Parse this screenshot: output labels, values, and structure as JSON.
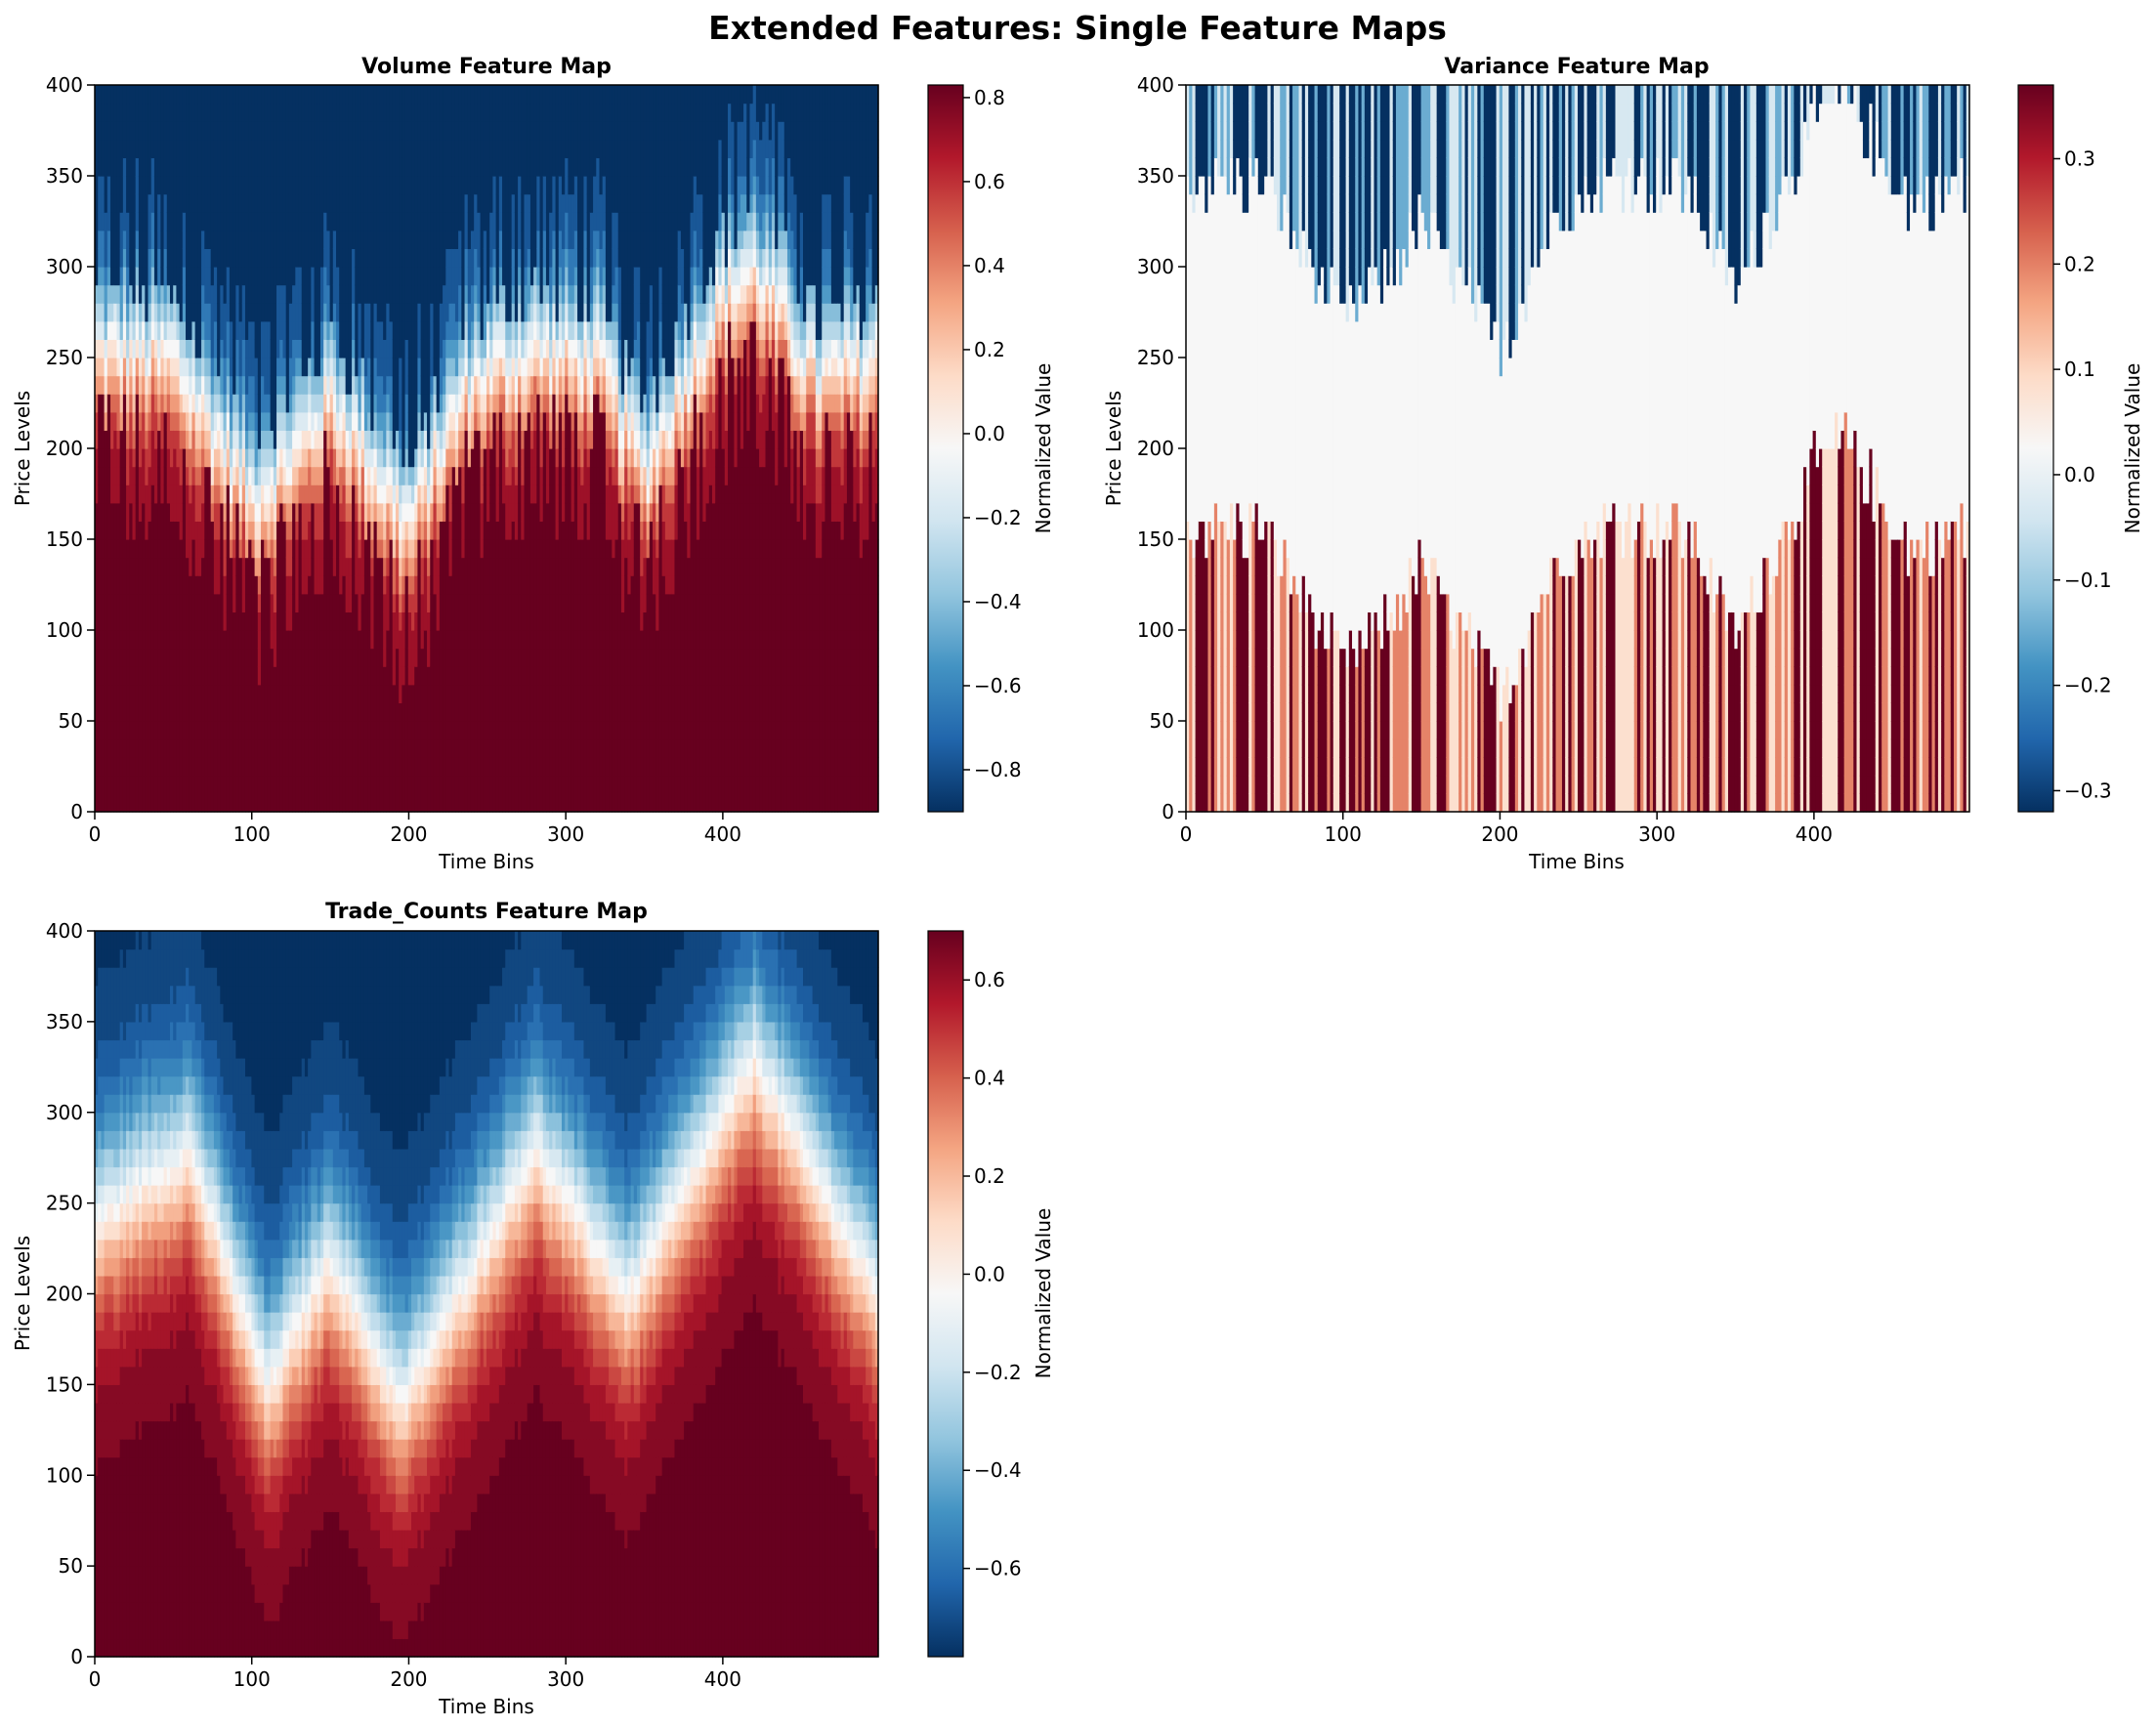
{
  "figure": {
    "title": "Extended Features: Single Feature Maps"
  },
  "chart_data": [
    {
      "type": "heatmap",
      "title": "Volume Feature Map",
      "xlabel": "Time Bins",
      "ylabel": "Price Levels",
      "colorbar_label": "Normalized Value",
      "colormap": "RdBu_r",
      "xlim": [
        0,
        499
      ],
      "ylim": [
        0,
        400
      ],
      "xticks": [
        0,
        100,
        200,
        300,
        400
      ],
      "yticks": [
        0,
        50,
        100,
        150,
        200,
        250,
        300,
        350,
        400
      ],
      "value_range": [
        -0.9,
        0.83
      ],
      "colorbar_ticks": [
        -0.8,
        -0.6,
        -0.4,
        -0.2,
        0.0,
        0.2,
        0.4,
        0.6,
        0.8
      ],
      "colorbar_tick_labels": [
        "−0.8",
        "−0.6",
        "−0.4",
        "−0.2",
        "0.0",
        "0.2",
        "0.4",
        "0.6",
        "0.8"
      ],
      "center_level_by_time": [
        [
          0,
          255
        ],
        [
          50,
          250
        ],
        [
          100,
          175
        ],
        [
          130,
          200
        ],
        [
          150,
          230
        ],
        [
          200,
          160
        ],
        [
          240,
          240
        ],
        [
          280,
          255
        ],
        [
          320,
          250
        ],
        [
          350,
          190
        ],
        [
          400,
          285
        ],
        [
          420,
          300
        ],
        [
          460,
          240
        ],
        [
          499,
          250
        ]
      ]
    },
    {
      "type": "heatmap",
      "title": "Variance Feature Map",
      "xlabel": "Time Bins",
      "ylabel": "Price Levels",
      "colorbar_label": "Normalized Value",
      "colormap": "RdBu_r",
      "xlim": [
        0,
        499
      ],
      "ylim": [
        0,
        400
      ],
      "xticks": [
        0,
        100,
        200,
        300,
        400
      ],
      "yticks": [
        0,
        50,
        100,
        150,
        200,
        250,
        300,
        350,
        400
      ],
      "value_range": [
        -0.32,
        0.37
      ],
      "colorbar_ticks": [
        -0.3,
        -0.2,
        -0.1,
        0.0,
        0.1,
        0.2,
        0.3
      ],
      "colorbar_tick_labels": [
        "−0.3",
        "−0.2",
        "−0.1",
        "0.0",
        "0.1",
        "0.2",
        "0.3"
      ],
      "center_level_by_time": [
        [
          0,
          255
        ],
        [
          50,
          250
        ],
        [
          100,
          175
        ],
        [
          130,
          200
        ],
        [
          150,
          230
        ],
        [
          200,
          160
        ],
        [
          240,
          240
        ],
        [
          280,
          255
        ],
        [
          320,
          250
        ],
        [
          350,
          190
        ],
        [
          400,
          285
        ],
        [
          420,
          300
        ],
        [
          460,
          240
        ],
        [
          499,
          250
        ]
      ]
    },
    {
      "type": "heatmap",
      "title": "Trade_Counts Feature Map",
      "xlabel": "Time Bins",
      "ylabel": "Price Levels",
      "colorbar_label": "Normalized Value",
      "colormap": "RdBu_r",
      "xlim": [
        0,
        499
      ],
      "ylim": [
        0,
        400
      ],
      "xticks": [
        0,
        100,
        200,
        300,
        400
      ],
      "yticks": [
        0,
        50,
        100,
        150,
        200,
        250,
        300,
        350,
        400
      ],
      "value_range": [
        -0.78,
        0.7
      ],
      "colorbar_ticks": [
        -0.6,
        -0.4,
        -0.2,
        0.0,
        0.2,
        0.4,
        0.6
      ],
      "colorbar_tick_labels": [
        "−0.6",
        "−0.4",
        "−0.2",
        "0.0",
        "0.2",
        "0.4",
        "0.6"
      ],
      "center_level_by_time": [
        [
          0,
          240
        ],
        [
          60,
          280
        ],
        [
          110,
          150
        ],
        [
          150,
          220
        ],
        [
          195,
          140
        ],
        [
          280,
          280
        ],
        [
          340,
          200
        ],
        [
          420,
          330
        ],
        [
          499,
          200
        ]
      ]
    }
  ]
}
